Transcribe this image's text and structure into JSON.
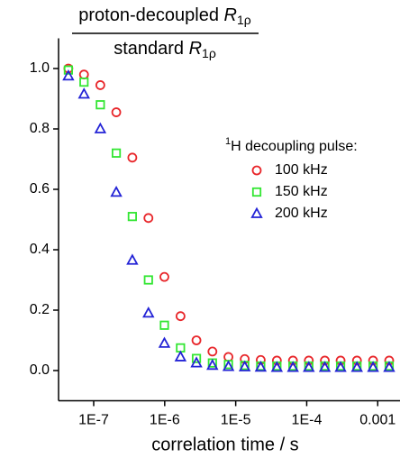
{
  "chart_data": {
    "type": "scatter",
    "y_label": {
      "numerator": "proton-decoupled",
      "denominator": "standard",
      "symbol": "R",
      "subscript": "1ρ"
    },
    "x_label": "correlation time / s",
    "legend_title": {
      "superscript": "1",
      "text": "H decoupling pulse:"
    },
    "x_log": true,
    "x": [
      4.4e-08,
      7.3e-08,
      1.24e-07,
      2.08e-07,
      3.5e-07,
      5.9e-07,
      9.9e-07,
      1.67e-06,
      2.8e-06,
      4.7e-06,
      7.9e-06,
      1.34e-05,
      2.25e-05,
      3.8e-05,
      6.4e-05,
      0.000107,
      0.00018,
      0.0003,
      0.00051,
      0.00086,
      0.00145
    ],
    "series": [
      {
        "name": "100 kHz",
        "color": "#e8262a",
        "marker": "circle",
        "values": [
          1.0,
          0.98,
          0.945,
          0.855,
          0.705,
          0.505,
          0.31,
          0.18,
          0.1,
          0.063,
          0.045,
          0.038,
          0.035,
          0.033,
          0.033,
          0.033,
          0.033,
          0.033,
          0.033,
          0.033,
          0.033
        ]
      },
      {
        "name": "150 kHz",
        "color": "#33e633",
        "marker": "square",
        "values": [
          0.995,
          0.955,
          0.88,
          0.72,
          0.51,
          0.3,
          0.15,
          0.075,
          0.04,
          0.025,
          0.02,
          0.017,
          0.015,
          0.015,
          0.015,
          0.015,
          0.015,
          0.015,
          0.015,
          0.015,
          0.015
        ]
      },
      {
        "name": "200 kHz",
        "color": "#2323d6",
        "marker": "triangle",
        "values": [
          0.975,
          0.915,
          0.8,
          0.59,
          0.365,
          0.19,
          0.09,
          0.045,
          0.025,
          0.017,
          0.013,
          0.012,
          0.011,
          0.01,
          0.01,
          0.01,
          0.01,
          0.01,
          0.01,
          0.01,
          0.01
        ]
      }
    ],
    "xlim": [
      3.2e-08,
      0.002
    ],
    "xticks": [
      {
        "value": 1e-07,
        "label": "1E-7"
      },
      {
        "value": 1e-06,
        "label": "1E-6"
      },
      {
        "value": 1e-05,
        "label": "1E-5"
      },
      {
        "value": 0.0001,
        "label": "1E-4"
      },
      0.001
    ],
    "ylim": [
      -0.1,
      1.1
    ],
    "yticks": [
      {
        "value": 0,
        "label": "0.0"
      },
      0.2,
      0.4,
      0.6,
      0.8,
      {
        "value": 1,
        "label": "1.0"
      }
    ]
  }
}
